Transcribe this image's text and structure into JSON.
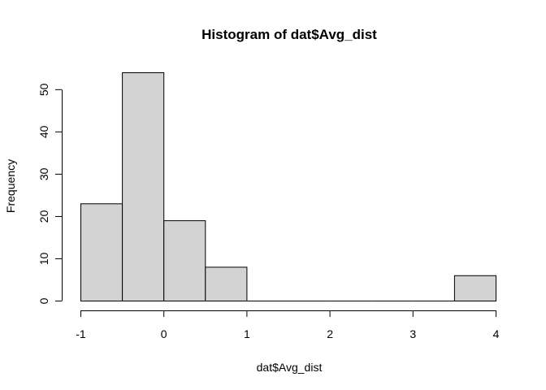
{
  "chart_data": {
    "type": "bar",
    "subtype": "histogram",
    "title": "Histogram of dat$Avg_dist",
    "xlabel": "dat$Avg_dist",
    "ylabel": "Frequency",
    "bins": [
      {
        "from": -1.0,
        "to": -0.5,
        "count": 23
      },
      {
        "from": -0.5,
        "to": 0.0,
        "count": 54
      },
      {
        "from": 0.0,
        "to": 0.5,
        "count": 19
      },
      {
        "from": 0.5,
        "to": 1.0,
        "count": 8
      },
      {
        "from": 1.0,
        "to": 1.5,
        "count": 0
      },
      {
        "from": 1.5,
        "to": 2.0,
        "count": 0
      },
      {
        "from": 2.0,
        "to": 2.5,
        "count": 0
      },
      {
        "from": 2.5,
        "to": 3.0,
        "count": 0
      },
      {
        "from": 3.0,
        "to": 3.5,
        "count": 0
      },
      {
        "from": 3.5,
        "to": 4.0,
        "count": 6
      }
    ],
    "xlim": [
      -1,
      4
    ],
    "ylim": [
      0,
      54
    ],
    "xticks": [
      -1,
      0,
      1,
      2,
      3,
      4
    ],
    "yticks": [
      0,
      10,
      20,
      30,
      40,
      50
    ],
    "bar_color": "#d3d3d3",
    "grid": false
  }
}
